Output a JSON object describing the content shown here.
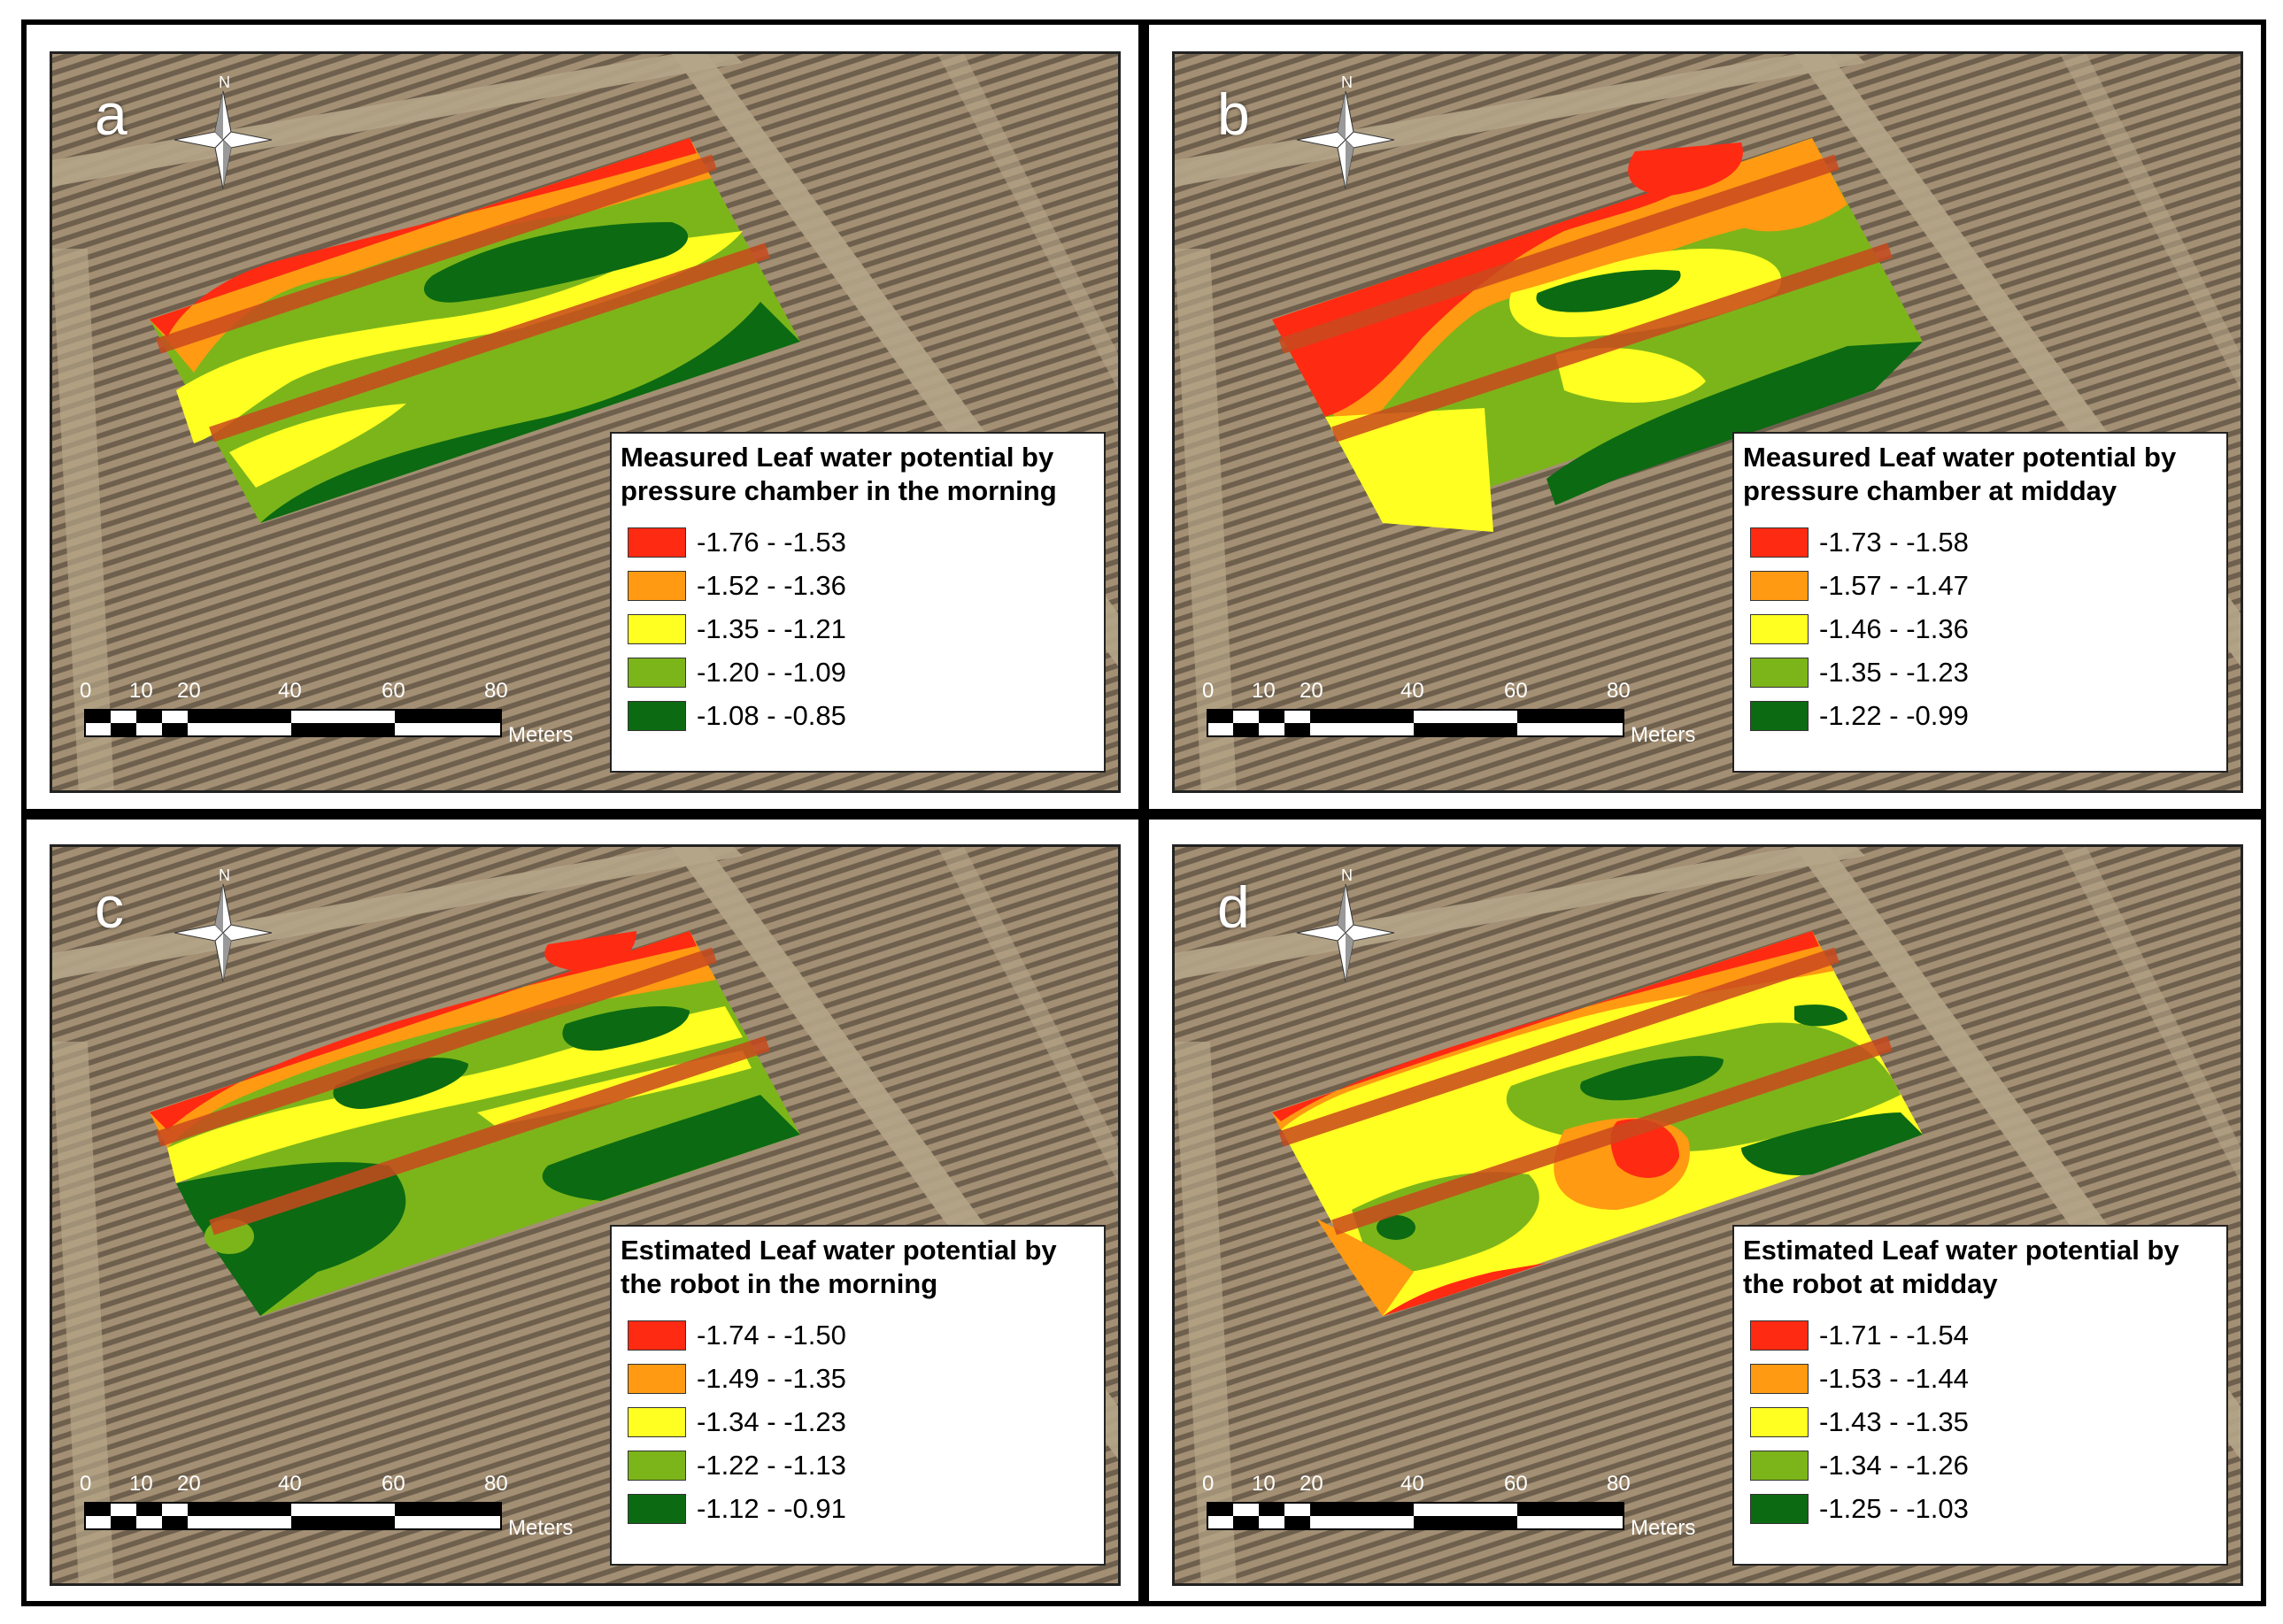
{
  "colors": {
    "class1": "#ff2a12",
    "class2": "#ff9a12",
    "class3": "#ffff22",
    "class4": "#7cb51a",
    "class5": "#0c6a12",
    "bare_soil": "#a08c72",
    "row_line": "#c94a1e"
  },
  "scale_bar": {
    "ticks": [
      "0",
      "10",
      "20",
      "40",
      "60",
      "80"
    ],
    "unit": "Meters"
  },
  "compass_label": "N",
  "panels": [
    {
      "letter": "a",
      "legend_title": "Measured Leaf water potential by\npressure chamber in the morning",
      "classes": [
        "-1.76 - -1.53",
        "-1.52 - -1.36",
        "-1.35 - -1.21",
        "-1.20 - -1.09",
        "-1.08 - -0.85"
      ]
    },
    {
      "letter": "b",
      "legend_title": "Measured Leaf water potential by\npressure chamber at midday",
      "classes": [
        "-1.73 - -1.58",
        "-1.57 - -1.47",
        "-1.46 - -1.36",
        "-1.35 - -1.23",
        "-1.22 - -0.99"
      ]
    },
    {
      "letter": "c",
      "legend_title": "Estimated Leaf water potential by\nthe robot in the morning",
      "classes": [
        "-1.74 - -1.50",
        "-1.49 - -1.35",
        "-1.34 - -1.23",
        "-1.22 - -1.13",
        "-1.12 - -0.91"
      ]
    },
    {
      "letter": "d",
      "legend_title": "Estimated Leaf water potential by\nthe robot at midday",
      "classes": [
        "-1.71 - -1.54",
        "-1.53 - -1.44",
        "-1.43 - -1.35",
        "-1.34 - -1.26",
        "-1.25 - -1.03"
      ]
    }
  ]
}
